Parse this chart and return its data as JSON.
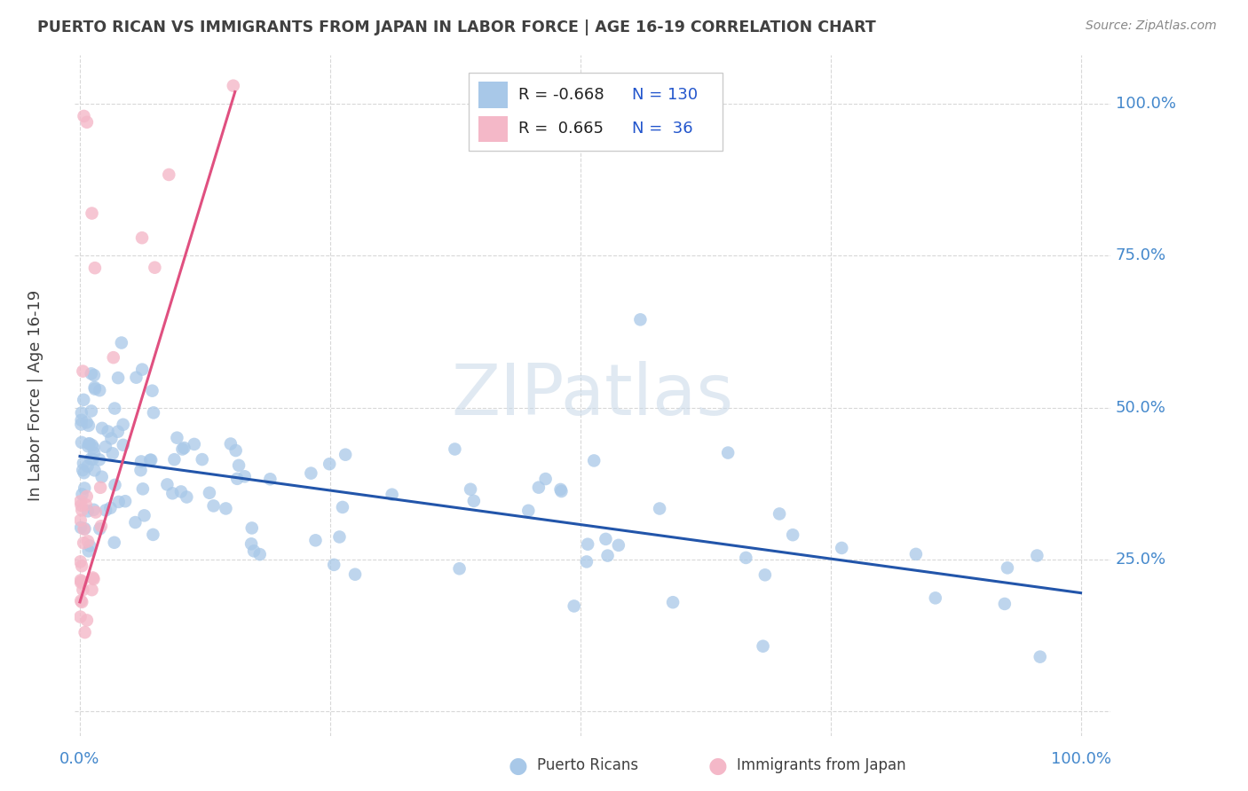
{
  "title": "PUERTO RICAN VS IMMIGRANTS FROM JAPAN IN LABOR FORCE | AGE 16-19 CORRELATION CHART",
  "source": "Source: ZipAtlas.com",
  "ylabel": "In Labor Force | Age 16-19",
  "ytick_labels": [
    "100.0%",
    "75.0%",
    "50.0%",
    "25.0%"
  ],
  "xtick_labels_bottom": [
    "0.0%",
    "100.0%"
  ],
  "blue_R": "-0.668",
  "blue_N": "130",
  "pink_R": "0.665",
  "pink_N": "36",
  "blue_dot_color": "#a8c8e8",
  "blue_line_color": "#2255aa",
  "pink_dot_color": "#f4b8c8",
  "pink_line_color": "#e05080",
  "watermark_color": "#c8d8e8",
  "grid_color": "#d8d8d8",
  "background_color": "#ffffff",
  "title_color": "#404040",
  "source_color": "#888888",
  "ylabel_color": "#404040",
  "tick_color": "#4488cc",
  "legend_text_color": "#222222",
  "legend_N_color": "#2255cc",
  "legend_border_color": "#cccccc",
  "bottom_legend_label1": "Puerto Ricans",
  "bottom_legend_label2": "Immigrants from Japan",
  "blue_line_x0": 0.0,
  "blue_line_x1": 1.0,
  "blue_line_y0": 0.42,
  "blue_line_y1": 0.195,
  "pink_line_x0": 0.0,
  "pink_line_x1": 0.155,
  "pink_line_y0": 0.18,
  "pink_line_y1": 1.02,
  "xlim_min": -0.005,
  "xlim_max": 1.03,
  "ylim_min": -0.04,
  "ylim_max": 1.08
}
